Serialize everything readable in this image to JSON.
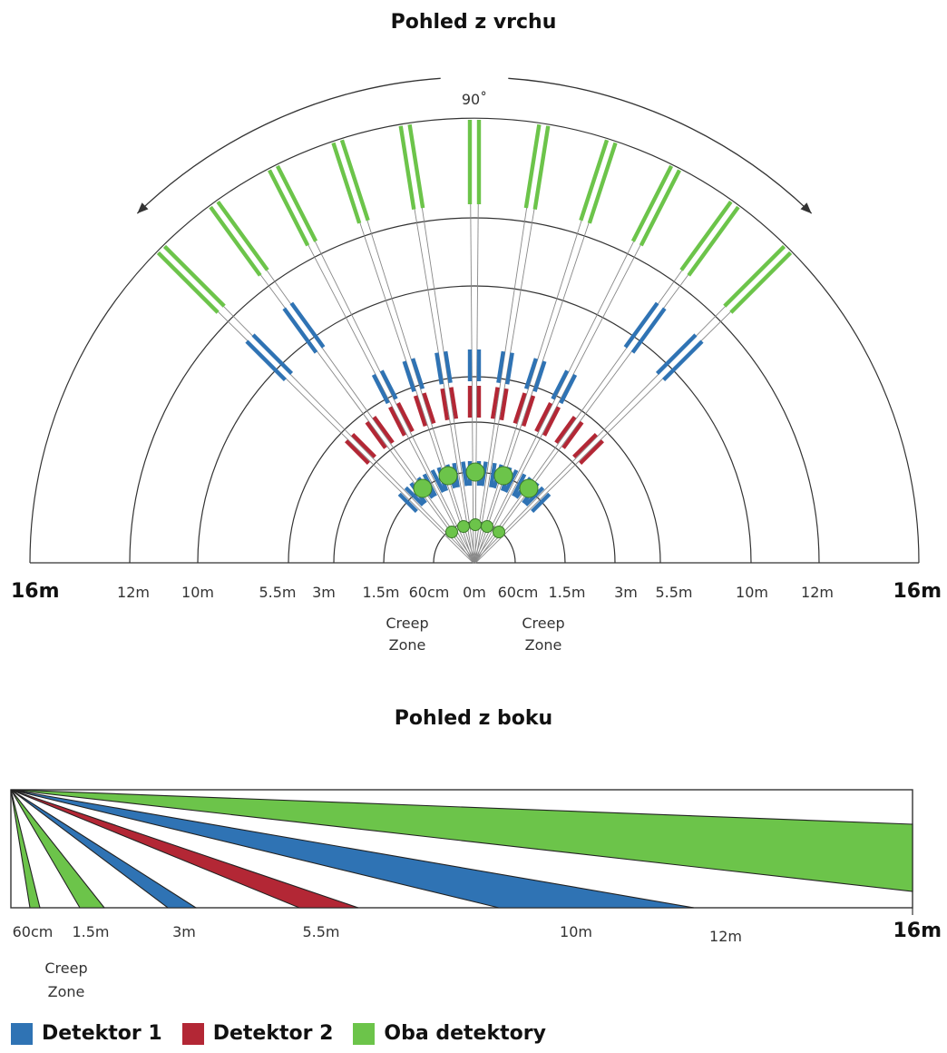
{
  "titles": {
    "top_view": "Pohled z vrchu",
    "side_view": "Pohled z boku"
  },
  "colors": {
    "detector1": "#2f73b4",
    "detector2": "#b32735",
    "both": "#6cc44a",
    "lines": "#333333",
    "beam": "#888888"
  },
  "top_view": {
    "angle_label": "90˚",
    "range_labels": [
      "16m",
      "12m",
      "10m",
      "5.5m",
      "3m",
      "1.5m",
      "60cm",
      "0m"
    ],
    "creep_zone_label": [
      "Creep",
      "Zone"
    ]
  },
  "side_view": {
    "range_labels": [
      "60cm",
      "1.5m",
      "3m",
      "5.5m",
      "10m",
      "12m",
      "16m"
    ],
    "creep_zone_label": [
      "Creep",
      "Zone"
    ]
  },
  "legend": [
    {
      "label": "Detektor 1",
      "color": "#2f73b4"
    },
    {
      "label": "Detektor 2",
      "color": "#b32735"
    },
    {
      "label": "Oba detektory",
      "color": "#6cc44a"
    }
  ]
}
